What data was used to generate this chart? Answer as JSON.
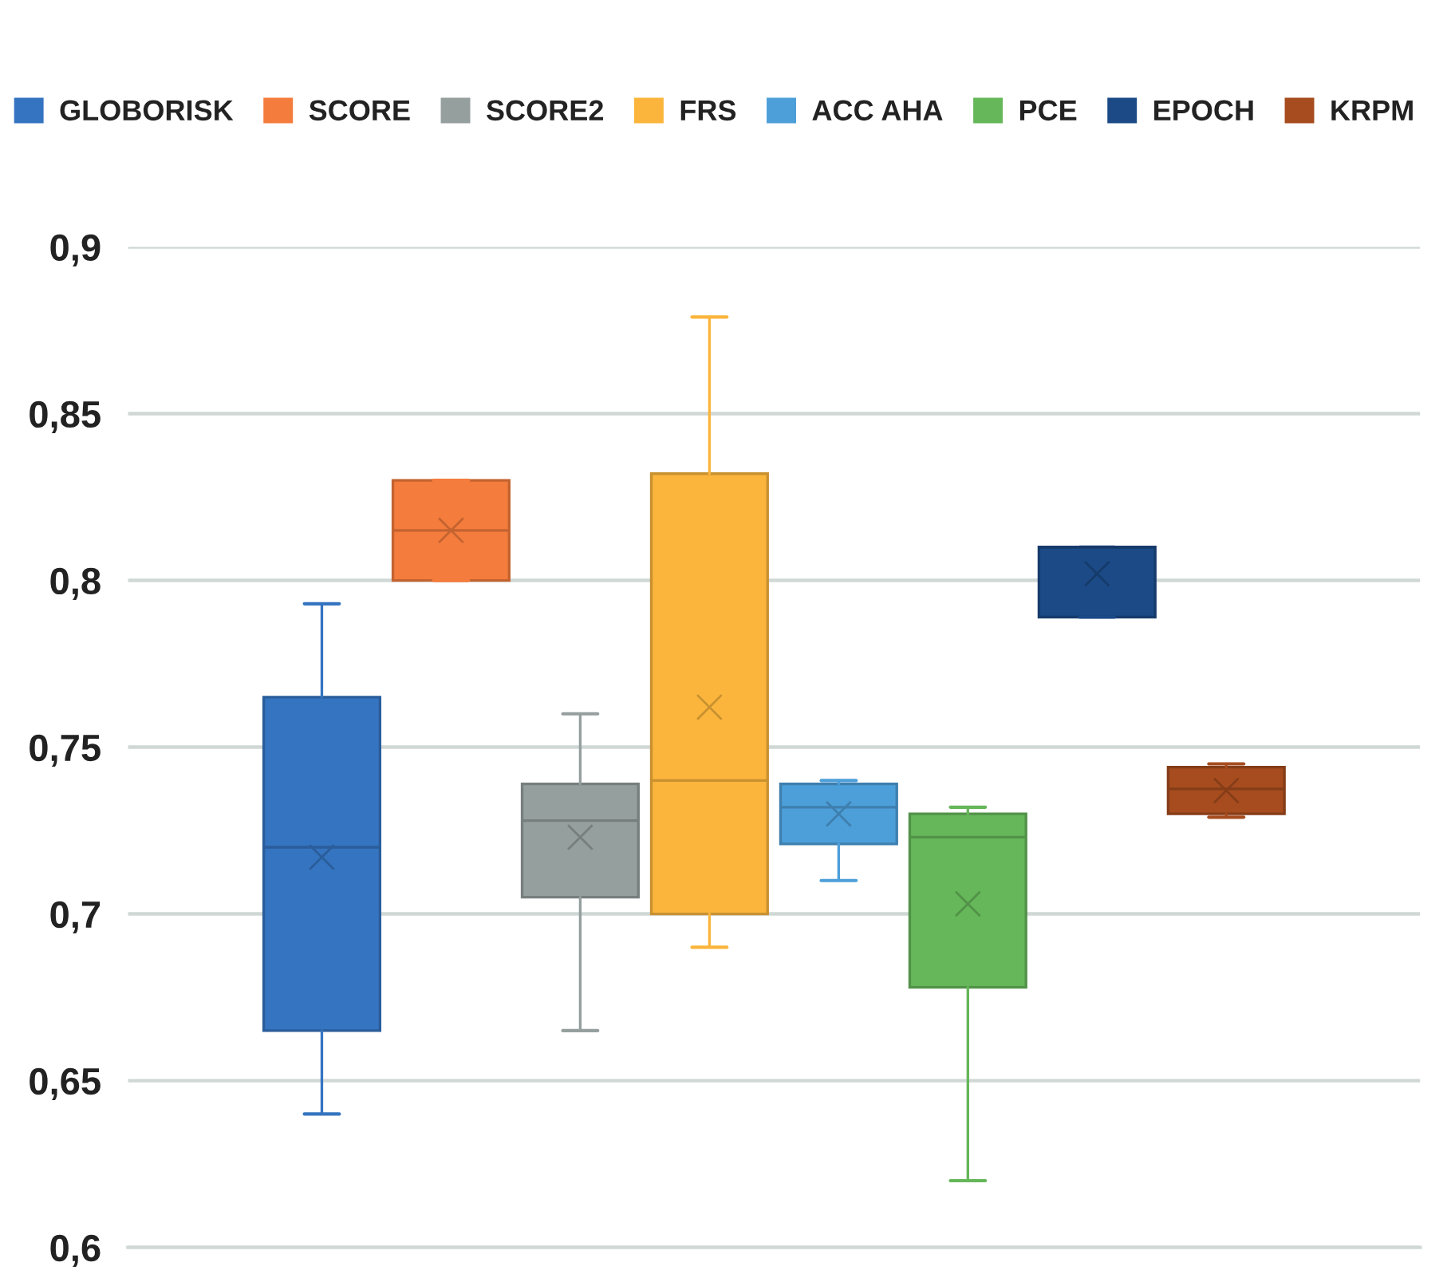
{
  "chart_data": {
    "type": "box",
    "categories": [
      null
    ],
    "ylim": [
      0.6,
      0.9
    ],
    "yticks": [
      {
        "value": 0.6,
        "label": "0,6"
      },
      {
        "value": 0.65,
        "label": "0,65"
      },
      {
        "value": 0.7,
        "label": "0,7"
      },
      {
        "value": 0.75,
        "label": "0,75"
      },
      {
        "value": 0.8,
        "label": "0,8"
      },
      {
        "value": 0.85,
        "label": "0,85"
      },
      {
        "value": 0.9,
        "label": "0,9"
      }
    ],
    "grid": "y",
    "legend": "top",
    "series": [
      {
        "name": "GLOBORISK",
        "color": "#3574c0",
        "boxes": [
          {
            "low": 0.64,
            "q1": 0.665,
            "median": 0.72,
            "q3": 0.765,
            "high": 0.793,
            "mean": 0.717
          }
        ]
      },
      {
        "name": "SCORE",
        "color": "#f47c3c",
        "boxes": [
          {
            "low": 0.8,
            "q1": 0.8,
            "median": 0.815,
            "q3": 0.83,
            "high": 0.83,
            "mean": 0.815
          }
        ]
      },
      {
        "name": "SCORE2",
        "color": "#959f9d",
        "boxes": [
          {
            "low": 0.665,
            "q1": 0.705,
            "median": 0.728,
            "q3": 0.739,
            "high": 0.76,
            "mean": 0.723
          }
        ]
      },
      {
        "name": "FRS",
        "color": "#fbb53c",
        "boxes": [
          {
            "low": 0.69,
            "q1": 0.7,
            "median": 0.74,
            "q3": 0.832,
            "high": 0.879,
            "mean": 0.762
          }
        ]
      },
      {
        "name": "ACC AHA",
        "color": "#4d9fd9",
        "boxes": [
          {
            "low": 0.71,
            "q1": 0.721,
            "median": 0.732,
            "q3": 0.739,
            "high": 0.74,
            "mean": 0.73
          }
        ]
      },
      {
        "name": "PCE",
        "color": "#66b65a",
        "boxes": [
          {
            "low": 0.62,
            "q1": 0.678,
            "median": 0.723,
            "q3": 0.73,
            "high": 0.732,
            "mean": 0.703
          }
        ]
      },
      {
        "name": "EPOCH",
        "color": "#1b4a86",
        "boxes": [
          {
            "low": 0.789,
            "q1": 0.789,
            "median": 0.81,
            "q3": 0.81,
            "high": 0.81,
            "mean": 0.802
          }
        ]
      },
      {
        "name": "KRPM",
        "color": "#a64c1e",
        "boxes": [
          {
            "low": 0.729,
            "q1": 0.73,
            "median": 0.7375,
            "q3": 0.744,
            "high": 0.745,
            "mean": 0.737
          }
        ]
      }
    ]
  }
}
